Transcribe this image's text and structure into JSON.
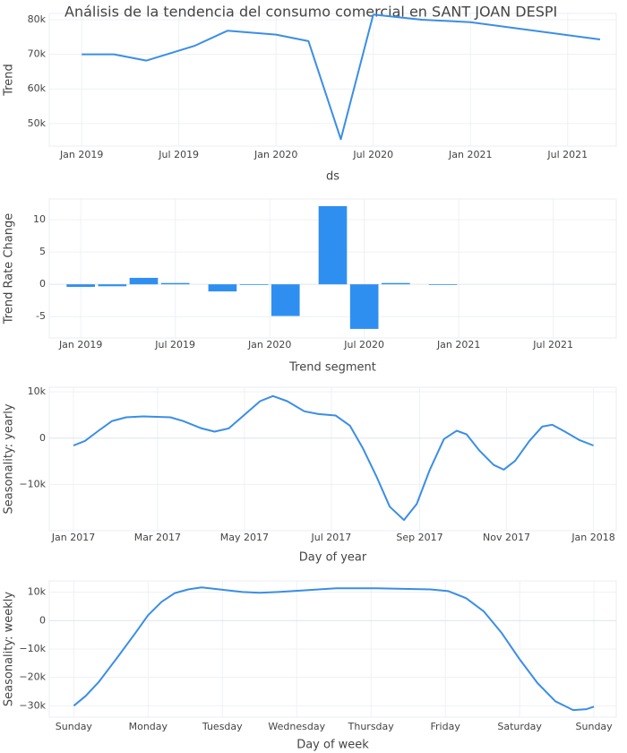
{
  "chart_data": [
    {
      "type": "line",
      "title": "Análisis de la tendencia del consumo comercial en SANT JOAN DESPI",
      "x_label": "ds",
      "y_label": "Trend",
      "x": [
        "2019-01",
        "2019-03",
        "2019-05",
        "2019-08",
        "2019-10",
        "2020-01",
        "2020-03",
        "2020-05",
        "2020-07",
        "2020-10",
        "2021-01",
        "2021-09"
      ],
      "values": [
        70000,
        70000,
        68200,
        72500,
        76800,
        75700,
        73800,
        45500,
        81500,
        80000,
        79300,
        74300
      ],
      "color": "#3a8ee6",
      "grid": true,
      "xlim": [
        "2018-11",
        "2021-10"
      ],
      "ylim": [
        43500,
        81800
      ],
      "xticks": [
        {
          "value": "2019-01",
          "label": "Jan 2019"
        },
        {
          "value": "2019-07",
          "label": "Jul 2019"
        },
        {
          "value": "2020-01",
          "label": "Jan 2020"
        },
        {
          "value": "2020-07",
          "label": "Jul 2020"
        },
        {
          "value": "2021-01",
          "label": "Jan 2021"
        },
        {
          "value": "2021-07",
          "label": "Jul 2021"
        }
      ],
      "yticks": [
        {
          "value": 50000,
          "label": "50k"
        },
        {
          "value": 60000,
          "label": "60k"
        },
        {
          "value": 70000,
          "label": "70k"
        },
        {
          "value": 80000,
          "label": "80k"
        }
      ]
    },
    {
      "type": "bar",
      "x_label": "Trend segment",
      "y_label": "Trend Rate Change",
      "x": [
        "2019-01",
        "2019-03",
        "2019-05",
        "2019-07",
        "2019-10",
        "2019-12",
        "2020-02",
        "2020-05",
        "2020-07",
        "2020-09",
        "2020-12",
        "2021-02",
        "2021-04",
        "2021-07",
        "2021-09"
      ],
      "values": [
        -0.4,
        -0.3,
        1.0,
        0.2,
        -1.1,
        -0.1,
        -4.9,
        12.1,
        -6.9,
        0.2,
        -0.1,
        0,
        0,
        0,
        0
      ],
      "color": "#2f8ff0",
      "grid": true,
      "xlim": [
        "2018-11",
        "2021-11"
      ],
      "ylim": [
        -8.3,
        13.2
      ],
      "xticks": [
        {
          "value": "2019-01",
          "label": "Jan 2019"
        },
        {
          "value": "2019-07",
          "label": "Jul 2019"
        },
        {
          "value": "2020-01",
          "label": "Jan 2020"
        },
        {
          "value": "2020-07",
          "label": "Jul 2020"
        },
        {
          "value": "2021-01",
          "label": "Jan 2021"
        },
        {
          "value": "2021-07",
          "label": "Jul 2021"
        }
      ],
      "yticks": [
        -5,
        0,
        5,
        10
      ]
    },
    {
      "type": "line",
      "x_label": "Day of year",
      "y_label": "Seasonality: yearly",
      "x": [
        0,
        8,
        18,
        27,
        37,
        49,
        68,
        77,
        90,
        99,
        109,
        118,
        131,
        140,
        150,
        162,
        172,
        184,
        194,
        203,
        213,
        222,
        232,
        241,
        250,
        260,
        269,
        276,
        285,
        295,
        302,
        310,
        320,
        329,
        336,
        345,
        355,
        365
      ],
      "values": [
        -1600,
        -600,
        1700,
        3700,
        4500,
        4700,
        4500,
        3700,
        2100,
        1400,
        2100,
        4500,
        8000,
        9100,
        8000,
        5800,
        5200,
        4900,
        2700,
        -2100,
        -8500,
        -14800,
        -17700,
        -14200,
        -6900,
        -200,
        1600,
        800,
        -2700,
        -5800,
        -6800,
        -4900,
        -600,
        2500,
        2900,
        1400,
        -400,
        -1600
      ],
      "color": "#3a8ee6",
      "grid": true,
      "xlim": [
        -17,
        381
      ],
      "ylim": [
        -20000,
        11000
      ],
      "xticks": [
        {
          "value": 0,
          "label": "Jan 2017"
        },
        {
          "value": 59,
          "label": "Mar 2017"
        },
        {
          "value": 120,
          "label": "May 2017"
        },
        {
          "value": 181,
          "label": "Jul 2017"
        },
        {
          "value": 243,
          "label": "Sep 2017"
        },
        {
          "value": 304,
          "label": "Nov 2017"
        },
        {
          "value": 365,
          "label": "Jan 2018"
        }
      ],
      "yticks": [
        {
          "value": -10000,
          "label": "−10k"
        },
        0,
        {
          "value": 10000,
          "label": "10k"
        }
      ]
    },
    {
      "type": "line",
      "x_label": "Day of week",
      "y_label": "Seasonality: weekly",
      "x": [
        0,
        0.16,
        0.34,
        0.58,
        0.82,
        1.0,
        1.18,
        1.36,
        1.54,
        1.72,
        1.96,
        2.27,
        2.5,
        2.75,
        3.11,
        3.53,
        4.07,
        4.8,
        5.04,
        5.28,
        5.52,
        5.76,
        6.0,
        6.24,
        6.48,
        6.72,
        6.9,
        7.0
      ],
      "values": [
        -30000,
        -26500,
        -21500,
        -13200,
        -4700,
        1900,
        6600,
        9700,
        11000,
        11700,
        11000,
        10100,
        9800,
        10100,
        10700,
        11400,
        11400,
        11000,
        10400,
        7900,
        3200,
        -4400,
        -13600,
        -22000,
        -28400,
        -31500,
        -31200,
        -30300
      ],
      "color": "#3a8ee6",
      "grid": true,
      "xlim": [
        -0.33,
        7.3
      ],
      "ylim": [
        -34000,
        14000
      ],
      "xticks": [
        {
          "value": 0,
          "label": "Sunday"
        },
        {
          "value": 1,
          "label": "Monday"
        },
        {
          "value": 2,
          "label": "Tuesday"
        },
        {
          "value": 3,
          "label": "Wednesday"
        },
        {
          "value": 4,
          "label": "Thursday"
        },
        {
          "value": 5,
          "label": "Friday"
        },
        {
          "value": 6,
          "label": "Saturday"
        },
        {
          "value": 7,
          "label": "Sunday"
        }
      ],
      "yticks": [
        {
          "value": -30000,
          "label": "−30k"
        },
        {
          "value": -20000,
          "label": "−20k"
        },
        {
          "value": -10000,
          "label": "−10k"
        },
        0,
        {
          "value": 10000,
          "label": "10k"
        }
      ]
    }
  ]
}
